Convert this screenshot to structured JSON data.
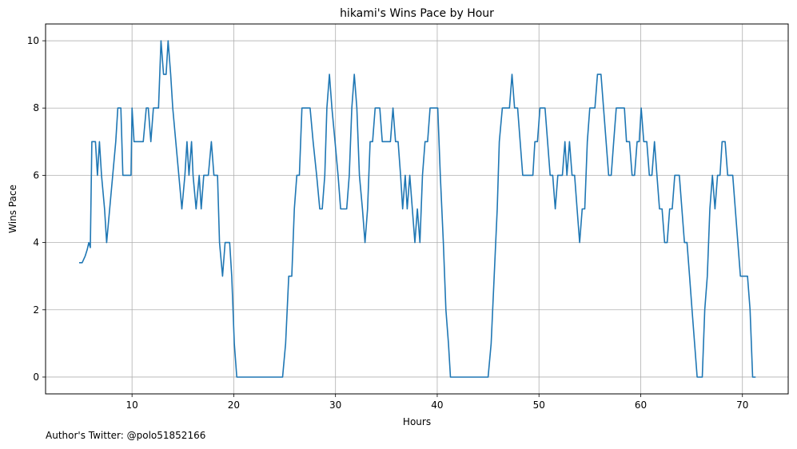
{
  "chart_data": {
    "type": "line",
    "title": "hikami's Wins Pace by Hour",
    "xlabel": "Hours",
    "ylabel": "Wins Pace",
    "xlim": [
      1.5,
      74.5
    ],
    "ylim": [
      -0.5,
      10.5
    ],
    "xticks": [
      10,
      20,
      30,
      40,
      50,
      60,
      70
    ],
    "yticks": [
      0,
      2,
      4,
      6,
      8,
      10
    ],
    "grid": true,
    "series": [
      {
        "color": "#1f77b4",
        "points": [
          [
            4.8,
            3.4
          ],
          [
            5.1,
            3.4
          ],
          [
            5.4,
            3.6
          ],
          [
            5.6,
            3.8
          ],
          [
            5.75,
            4.0
          ],
          [
            5.9,
            3.85
          ],
          [
            6.05,
            7.0
          ],
          [
            6.4,
            7.0
          ],
          [
            6.6,
            6.0
          ],
          [
            6.8,
            7.0
          ],
          [
            7.0,
            6.0
          ],
          [
            7.3,
            5.0
          ],
          [
            7.5,
            4.0
          ],
          [
            7.8,
            5.0
          ],
          [
            8.1,
            6.0
          ],
          [
            8.4,
            7.0
          ],
          [
            8.6,
            8.0
          ],
          [
            8.9,
            8.0
          ],
          [
            9.1,
            6.0
          ],
          [
            9.7,
            6.0
          ],
          [
            9.9,
            6.0
          ],
          [
            10.0,
            8.0
          ],
          [
            10.2,
            7.0
          ],
          [
            10.9,
            7.0
          ],
          [
            11.1,
            7.0
          ],
          [
            11.4,
            8.0
          ],
          [
            11.6,
            8.0
          ],
          [
            11.85,
            7.0
          ],
          [
            12.1,
            8.0
          ],
          [
            12.6,
            8.0
          ],
          [
            12.85,
            10.0
          ],
          [
            13.1,
            9.0
          ],
          [
            13.35,
            9.0
          ],
          [
            13.55,
            10.0
          ],
          [
            13.8,
            9.0
          ],
          [
            14.0,
            8.0
          ],
          [
            14.3,
            7.0
          ],
          [
            14.6,
            6.0
          ],
          [
            14.9,
            5.0
          ],
          [
            15.2,
            6.0
          ],
          [
            15.4,
            7.0
          ],
          [
            15.6,
            6.0
          ],
          [
            15.85,
            7.0
          ],
          [
            16.0,
            6.0
          ],
          [
            16.3,
            5.0
          ],
          [
            16.6,
            6.0
          ],
          [
            16.8,
            5.0
          ],
          [
            17.05,
            6.0
          ],
          [
            17.5,
            6.0
          ],
          [
            17.8,
            7.0
          ],
          [
            18.05,
            6.0
          ],
          [
            18.4,
            6.0
          ],
          [
            18.6,
            4.0
          ],
          [
            18.9,
            3.0
          ],
          [
            19.15,
            4.0
          ],
          [
            19.6,
            4.0
          ],
          [
            19.8,
            3.0
          ],
          [
            20.05,
            1.0
          ],
          [
            20.3,
            0.0
          ],
          [
            24.8,
            0.0
          ],
          [
            25.1,
            1.0
          ],
          [
            25.4,
            3.0
          ],
          [
            25.7,
            3.0
          ],
          [
            25.95,
            5.0
          ],
          [
            26.2,
            6.0
          ],
          [
            26.45,
            6.0
          ],
          [
            26.7,
            8.0
          ],
          [
            27.2,
            8.0
          ],
          [
            27.5,
            8.0
          ],
          [
            27.8,
            7.0
          ],
          [
            28.15,
            6.0
          ],
          [
            28.45,
            5.0
          ],
          [
            28.7,
            5.0
          ],
          [
            28.95,
            6.0
          ],
          [
            29.15,
            8.0
          ],
          [
            29.4,
            9.0
          ],
          [
            29.65,
            8.0
          ],
          [
            29.95,
            7.0
          ],
          [
            30.25,
            6.0
          ],
          [
            30.5,
            5.0
          ],
          [
            30.8,
            5.0
          ],
          [
            31.1,
            5.0
          ],
          [
            31.35,
            6.0
          ],
          [
            31.6,
            8.0
          ],
          [
            31.85,
            9.0
          ],
          [
            32.1,
            8.0
          ],
          [
            32.35,
            6.0
          ],
          [
            32.65,
            5.0
          ],
          [
            32.9,
            4.0
          ],
          [
            33.15,
            5.0
          ],
          [
            33.4,
            7.0
          ],
          [
            33.65,
            7.0
          ],
          [
            33.9,
            8.0
          ],
          [
            34.35,
            8.0
          ],
          [
            34.6,
            7.0
          ],
          [
            35.4,
            7.0
          ],
          [
            35.65,
            8.0
          ],
          [
            35.9,
            7.0
          ],
          [
            36.15,
            7.0
          ],
          [
            36.4,
            6.0
          ],
          [
            36.6,
            5.0
          ],
          [
            36.85,
            6.0
          ],
          [
            37.05,
            5.0
          ],
          [
            37.3,
            6.0
          ],
          [
            37.55,
            5.0
          ],
          [
            37.8,
            4.0
          ],
          [
            38.05,
            5.0
          ],
          [
            38.3,
            4.0
          ],
          [
            38.55,
            6.0
          ],
          [
            38.8,
            7.0
          ],
          [
            39.05,
            7.0
          ],
          [
            39.3,
            8.0
          ],
          [
            39.8,
            8.0
          ],
          [
            40.05,
            8.0
          ],
          [
            40.3,
            6.0
          ],
          [
            40.6,
            4.0
          ],
          [
            40.85,
            2.0
          ],
          [
            41.1,
            1.0
          ],
          [
            41.3,
            0.0
          ],
          [
            45.0,
            0.0
          ],
          [
            45.3,
            1.0
          ],
          [
            45.6,
            3.0
          ],
          [
            45.9,
            5.0
          ],
          [
            46.1,
            7.0
          ],
          [
            46.4,
            8.0
          ],
          [
            47.1,
            8.0
          ],
          [
            47.35,
            9.0
          ],
          [
            47.6,
            8.0
          ],
          [
            47.9,
            8.0
          ],
          [
            48.15,
            7.0
          ],
          [
            48.4,
            6.0
          ],
          [
            49.4,
            6.0
          ],
          [
            49.6,
            7.0
          ],
          [
            49.85,
            7.0
          ],
          [
            50.1,
            8.0
          ],
          [
            50.6,
            8.0
          ],
          [
            50.85,
            7.0
          ],
          [
            51.1,
            6.0
          ],
          [
            51.35,
            6.0
          ],
          [
            51.6,
            5.0
          ],
          [
            51.85,
            6.0
          ],
          [
            52.3,
            6.0
          ],
          [
            52.55,
            7.0
          ],
          [
            52.75,
            6.0
          ],
          [
            53.0,
            7.0
          ],
          [
            53.25,
            6.0
          ],
          [
            53.5,
            6.0
          ],
          [
            53.75,
            5.0
          ],
          [
            54.0,
            4.0
          ],
          [
            54.25,
            5.0
          ],
          [
            54.5,
            5.0
          ],
          [
            54.75,
            7.0
          ],
          [
            55.0,
            8.0
          ],
          [
            55.5,
            8.0
          ],
          [
            55.75,
            9.0
          ],
          [
            56.1,
            9.0
          ],
          [
            56.35,
            8.0
          ],
          [
            56.6,
            7.0
          ],
          [
            56.85,
            6.0
          ],
          [
            57.1,
            6.0
          ],
          [
            57.35,
            7.0
          ],
          [
            57.6,
            8.0
          ],
          [
            58.4,
            8.0
          ],
          [
            58.6,
            7.0
          ],
          [
            58.9,
            7.0
          ],
          [
            59.15,
            6.0
          ],
          [
            59.4,
            6.0
          ],
          [
            59.65,
            7.0
          ],
          [
            59.85,
            7.0
          ],
          [
            60.05,
            8.0
          ],
          [
            60.3,
            7.0
          ],
          [
            60.6,
            7.0
          ],
          [
            60.85,
            6.0
          ],
          [
            61.1,
            6.0
          ],
          [
            61.35,
            7.0
          ],
          [
            61.6,
            6.0
          ],
          [
            61.85,
            5.0
          ],
          [
            62.1,
            5.0
          ],
          [
            62.35,
            4.0
          ],
          [
            62.6,
            4.0
          ],
          [
            62.85,
            5.0
          ],
          [
            63.1,
            5.0
          ],
          [
            63.35,
            6.0
          ],
          [
            63.8,
            6.0
          ],
          [
            64.05,
            5.0
          ],
          [
            64.3,
            4.0
          ],
          [
            64.55,
            4.0
          ],
          [
            64.8,
            3.0
          ],
          [
            65.05,
            2.0
          ],
          [
            65.3,
            1.0
          ],
          [
            65.55,
            0.0
          ],
          [
            66.05,
            0.0
          ],
          [
            66.3,
            2.0
          ],
          [
            66.55,
            3.0
          ],
          [
            66.8,
            5.0
          ],
          [
            67.05,
            6.0
          ],
          [
            67.3,
            5.0
          ],
          [
            67.55,
            6.0
          ],
          [
            67.8,
            6.0
          ],
          [
            68.0,
            7.0
          ],
          [
            68.3,
            7.0
          ],
          [
            68.55,
            6.0
          ],
          [
            68.8,
            6.0
          ],
          [
            69.05,
            6.0
          ],
          [
            69.3,
            5.0
          ],
          [
            69.55,
            4.0
          ],
          [
            69.8,
            3.0
          ],
          [
            70.05,
            3.0
          ],
          [
            70.5,
            3.0
          ],
          [
            70.75,
            2.0
          ],
          [
            71.0,
            0.0
          ],
          [
            71.3,
            0.0
          ]
        ]
      }
    ]
  },
  "footer": {
    "note": "Author's Twitter: @polo51852166"
  }
}
